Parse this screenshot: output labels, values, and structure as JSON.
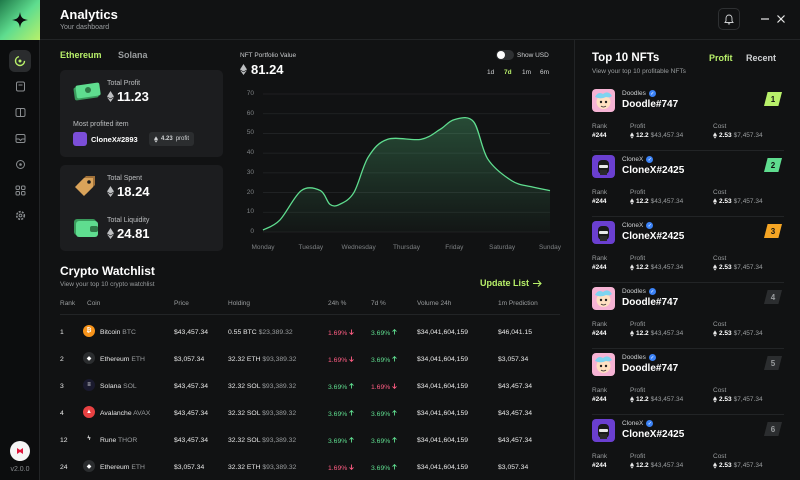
{
  "app": {
    "title": "Analytics",
    "subtitle": "Your dashboard",
    "version": "v2.0.0"
  },
  "colors": {
    "accent": "#b8f06a",
    "positive": "#5fdd8f",
    "negative": "#ff5d83",
    "background": "#111213",
    "card": "#1c1d1f"
  },
  "rail": {
    "icons": [
      "dashboard-icon",
      "document-icon",
      "portfolio-icon",
      "mail-icon",
      "target-icon",
      "grid-icon",
      "settings-icon"
    ]
  },
  "chains": {
    "active": "Ethereum",
    "inactive": "Solana"
  },
  "profit_card": {
    "label": "Total Profit",
    "value": "11.23",
    "most_label": "Most profited item",
    "item_name": "CloneX#2893",
    "item_profit": "4.23",
    "item_profit_suffix": "profit"
  },
  "spent_card": {
    "spent_label": "Total Spent",
    "spent_value": "18.24",
    "liquidity_label": "Total Liquidity",
    "liquidity_value": "24.81"
  },
  "portfolio": {
    "label": "NFT Portfolio Value",
    "value": "81.24",
    "show_usd": "Show USD",
    "ranges": [
      "1d",
      "7d",
      "1m",
      "6m"
    ],
    "active_range": "7d"
  },
  "chart_data": {
    "type": "area",
    "x": [
      "Monday",
      "Tuesday",
      "Wednesday",
      "Thursday",
      "Friday",
      "Saturday",
      "Sunday"
    ],
    "yticks": [
      "70",
      "60",
      "50",
      "40",
      "30",
      "20",
      "10",
      "0"
    ],
    "ylim": [
      0,
      70
    ],
    "series": [
      {
        "points": [
          [
            0,
            1
          ],
          [
            0.35,
            6
          ],
          [
            0.8,
            21
          ],
          [
            1.2,
            21
          ],
          [
            1.4,
            14
          ],
          [
            1.6,
            14
          ],
          [
            1.9,
            20
          ],
          [
            2.2,
            38
          ],
          [
            2.6,
            47
          ],
          [
            3.3,
            47
          ],
          [
            3.7,
            52
          ],
          [
            4.0,
            57
          ],
          [
            4.4,
            56
          ],
          [
            4.7,
            37
          ],
          [
            5.2,
            26
          ],
          [
            5.6,
            23
          ],
          [
            6.0,
            21
          ]
        ]
      }
    ],
    "grid": true
  },
  "watchlist": {
    "title": "Crypto Watchlist",
    "subtitle": "View your top 10 crypto watchlist",
    "update_label": "Update List",
    "columns": [
      "Rank",
      "Coin",
      "Price",
      "Holding",
      "24h %",
      "7d %",
      "Volume 24h",
      "1m Prediction"
    ],
    "rows": [
      {
        "rank": "1",
        "coin": "Bitcoin",
        "ticker": "BTC",
        "icon": "bitcoin-icon",
        "icon_color": "#f7931a",
        "glyph": "₿",
        "price": "$43,457.34",
        "holding": "0.55 BTC",
        "holding_usd": "$23,389.32",
        "d24": "1.69%",
        "d24_dir": "down",
        "d7": "3.69%",
        "d7_dir": "up",
        "volume": "$34,041,604,159",
        "prediction": "$46,041.15"
      },
      {
        "rank": "2",
        "coin": "Ethereum",
        "ticker": "ETH",
        "icon": "ethereum-icon",
        "icon_color": "#2b2d2f",
        "glyph": "◆",
        "price": "$3,057.34",
        "holding": "32.32 ETH",
        "holding_usd": "$93,389.32",
        "d24": "1.69%",
        "d24_dir": "down",
        "d7": "3.69%",
        "d7_dir": "up",
        "volume": "$34,041,604,159",
        "prediction": "$3,057.34"
      },
      {
        "rank": "3",
        "coin": "Solana",
        "ticker": "SOL",
        "icon": "solana-icon",
        "icon_color": "#1a1a2e",
        "glyph": "≡",
        "price": "$43,457.34",
        "holding": "32.32 SOL",
        "holding_usd": "$93,389.32",
        "d24": "3.69%",
        "d24_dir": "up",
        "d7": "1.69%",
        "d7_dir": "down",
        "volume": "$34,041,604,159",
        "prediction": "$43,457.34"
      },
      {
        "rank": "4",
        "coin": "Avalanche",
        "ticker": "AVAX",
        "icon": "avalanche-icon",
        "icon_color": "#e84142",
        "glyph": "▲",
        "price": "$43,457.34",
        "holding": "32.32 SOL",
        "holding_usd": "$93,389.32",
        "d24": "3.69%",
        "d24_dir": "up",
        "d7": "3.69%",
        "d7_dir": "up",
        "volume": "$34,041,604,159",
        "prediction": "$43,457.34"
      },
      {
        "rank": "12",
        "coin": "Rune",
        "ticker": "THOR",
        "icon": "rune-icon",
        "icon_color": "#111213",
        "glyph": "ϟ",
        "price": "$43,457.34",
        "holding": "32.32 SOL",
        "holding_usd": "$93,389.32",
        "d24": "3.69%",
        "d24_dir": "up",
        "d7": "3.69%",
        "d7_dir": "up",
        "volume": "$34,041,604,159",
        "prediction": "$43,457.34"
      },
      {
        "rank": "24",
        "coin": "Ethereum",
        "ticker": "ETH",
        "icon": "ethereum-icon",
        "icon_color": "#2b2d2f",
        "glyph": "◆",
        "price": "$3,057.34",
        "holding": "32.32 ETH",
        "holding_usd": "$93,389.32",
        "d24": "1.69%",
        "d24_dir": "down",
        "d7": "3.69%",
        "d7_dir": "up",
        "volume": "$34,041,604,159",
        "prediction": "$3,057.34"
      }
    ]
  },
  "top_nfts": {
    "title": "Top 10 NFTs",
    "subtitle": "View your top 10 profitable NFTs",
    "tabs": [
      "Profit",
      "Recent"
    ],
    "active_tab": "Profit",
    "labels": {
      "rank": "Rank",
      "profit": "Profit",
      "cost": "Cost"
    },
    "items": [
      {
        "collection": "Doodles",
        "name": "Doodle#747",
        "badge": "1",
        "badge_color": "#b8f06a",
        "art": "doodle",
        "rank": "#244",
        "profit": "12.2",
        "profit_usd": "$43,457.34",
        "cost": "2.53",
        "cost_usd": "$7,457.34"
      },
      {
        "collection": "CloneX",
        "name": "CloneX#2425",
        "badge": "2",
        "badge_color": "#5fdd8f",
        "art": "clonex",
        "rank": "#244",
        "profit": "12.2",
        "profit_usd": "$43,457.34",
        "cost": "2.53",
        "cost_usd": "$7,457.34"
      },
      {
        "collection": "CloneX",
        "name": "CloneX#2425",
        "badge": "3",
        "badge_color": "#f5a524",
        "art": "clonex",
        "rank": "#244",
        "profit": "12.2",
        "profit_usd": "$43,457.34",
        "cost": "2.53",
        "cost_usd": "$7,457.34"
      },
      {
        "collection": "Doodles",
        "name": "Doodle#747",
        "badge": "4",
        "badge_color": "#2b2d2f",
        "art": "doodle",
        "rank": "#244",
        "profit": "12.2",
        "profit_usd": "$43,457.34",
        "cost": "2.53",
        "cost_usd": "$7,457.34"
      },
      {
        "collection": "Doodles",
        "name": "Doodle#747",
        "badge": "5",
        "badge_color": "#2b2d2f",
        "art": "doodle",
        "rank": "#244",
        "profit": "12.2",
        "profit_usd": "$43,457.34",
        "cost": "2.53",
        "cost_usd": "$7,457.34"
      },
      {
        "collection": "CloneX",
        "name": "CloneX#2425",
        "badge": "6",
        "badge_color": "#2b2d2f",
        "art": "clonex",
        "rank": "#244",
        "profit": "12.2",
        "profit_usd": "$43,457.34",
        "cost": "2.53",
        "cost_usd": "$7,457.34"
      }
    ]
  }
}
